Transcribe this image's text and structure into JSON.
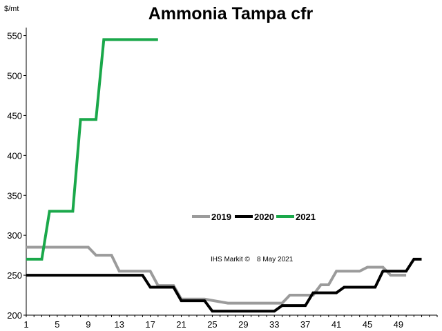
{
  "chart_data": {
    "type": "line",
    "title": "Ammonia Tampa  cfr",
    "ylabel": "$/mt",
    "xlabel": "",
    "ylim": [
      200,
      560
    ],
    "yticks": [
      200,
      250,
      300,
      350,
      400,
      450,
      500,
      550
    ],
    "xlim": [
      1,
      54
    ],
    "xticks": [
      1,
      5,
      9,
      13,
      17,
      21,
      25,
      29,
      33,
      37,
      41,
      45,
      49
    ],
    "grid": false,
    "legend_position": "center",
    "annotation": {
      "source": "IHS Markit  ©",
      "date": "8 May 2021"
    },
    "series": [
      {
        "name": "2019",
        "color": "#9b9b9b",
        "points": [
          [
            1,
            285
          ],
          [
            9,
            285
          ],
          [
            10,
            275
          ],
          [
            12,
            275
          ],
          [
            13,
            255
          ],
          [
            17,
            255
          ],
          [
            18,
            237
          ],
          [
            20,
            237
          ],
          [
            21,
            220
          ],
          [
            23,
            220
          ],
          [
            24,
            220
          ],
          [
            27,
            215
          ],
          [
            34,
            215
          ],
          [
            35,
            225
          ],
          [
            38,
            225
          ],
          [
            39,
            238
          ],
          [
            40,
            238
          ],
          [
            41,
            255
          ],
          [
            44,
            255
          ],
          [
            45,
            260
          ],
          [
            47,
            260
          ],
          [
            48,
            250
          ],
          [
            50,
            250
          ]
        ]
      },
      {
        "name": "2020",
        "color": "#000000",
        "points": [
          [
            1,
            250
          ],
          [
            16,
            250
          ],
          [
            17,
            235
          ],
          [
            20,
            235
          ],
          [
            21,
            218
          ],
          [
            24,
            218
          ],
          [
            25,
            205
          ],
          [
            33,
            205
          ],
          [
            34,
            212
          ],
          [
            37,
            212
          ],
          [
            38,
            228
          ],
          [
            41,
            228
          ],
          [
            42,
            235
          ],
          [
            46,
            235
          ],
          [
            47,
            255
          ],
          [
            50,
            255
          ],
          [
            51,
            270
          ],
          [
            52,
            270
          ]
        ]
      },
      {
        "name": "2021",
        "color": "#1aa84a",
        "points": [
          [
            1,
            270
          ],
          [
            3,
            270
          ],
          [
            4,
            330
          ],
          [
            7,
            330
          ],
          [
            8,
            445
          ],
          [
            10,
            445
          ],
          [
            11,
            545
          ],
          [
            18,
            545
          ]
        ]
      }
    ]
  }
}
